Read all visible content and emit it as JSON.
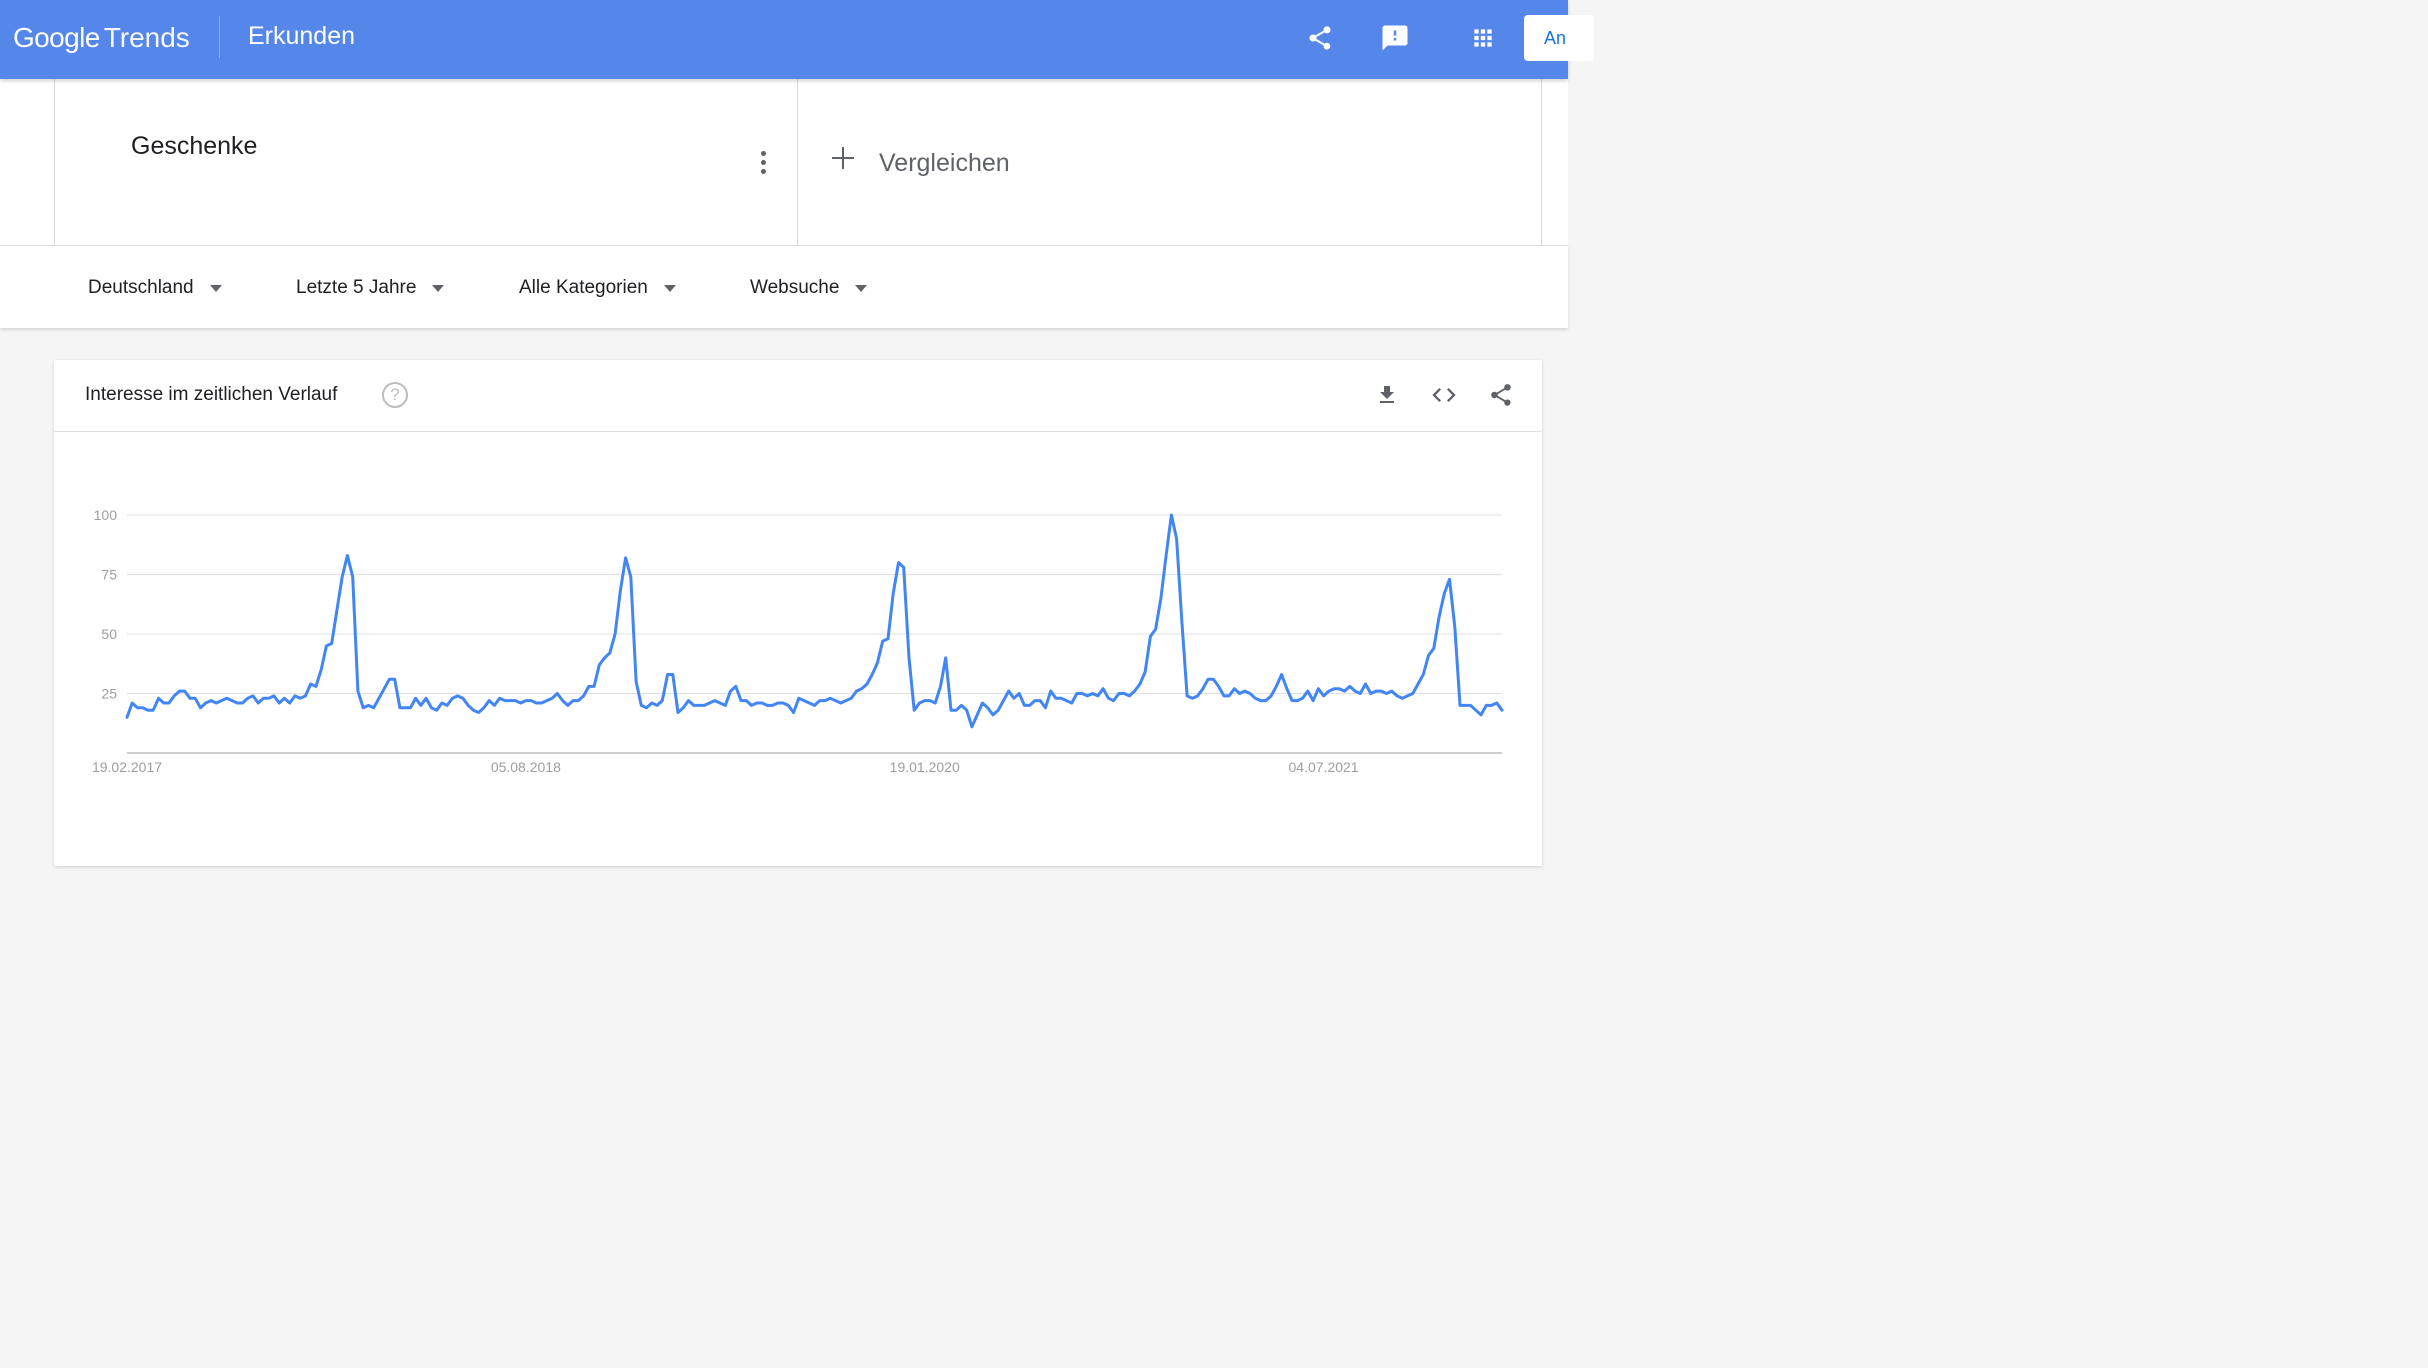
{
  "header": {
    "logo_google": "Google",
    "logo_trends": "Trends",
    "title": "Erkunden",
    "signin_label": "An",
    "icons": [
      "share-icon",
      "feedback-icon",
      "apps-icon"
    ]
  },
  "search": {
    "term": "Geschenke",
    "compare_label": "Vergleichen"
  },
  "filters": {
    "region": "Deutschland",
    "timeframe": "Letzte 5 Jahre",
    "category": "Alle Kategorien",
    "property": "Websuche"
  },
  "chart_card": {
    "title": "Interesse im zeitlichen Verlauf",
    "help_symbol": "?",
    "actions": [
      "download-icon",
      "embed-icon",
      "share-icon"
    ]
  },
  "colors": {
    "header": "#5586e9",
    "line": "#4285f4",
    "grid": "#e0e0e0",
    "tick_text": "#9e9e9e"
  },
  "chart_data": {
    "type": "line",
    "title": "Interesse im zeitlichen Verlauf",
    "xlabel": "",
    "ylabel": "",
    "ylim": [
      0,
      100
    ],
    "y_ticks": [
      25,
      50,
      75,
      100
    ],
    "x_tick_labels": [
      "19.02.2017",
      "05.08.2018",
      "19.01.2020",
      "04.07.2021"
    ],
    "x_tick_index": [
      0,
      76,
      152,
      228
    ],
    "grid": true,
    "legend": "none",
    "series": [
      {
        "values": [
          15,
          21,
          19,
          19,
          18,
          18,
          23,
          21,
          21,
          24,
          26,
          26,
          23,
          23,
          19,
          21,
          22,
          21,
          22,
          23,
          22,
          21,
          21,
          23,
          24,
          21,
          23,
          23,
          24,
          21,
          23,
          21,
          24,
          23,
          24,
          29,
          28,
          35,
          45,
          46,
          60,
          74,
          83,
          74,
          26,
          19,
          20,
          19,
          23,
          27,
          31,
          31,
          19,
          19,
          19,
          23,
          20,
          23,
          19,
          18,
          21,
          20,
          23,
          24,
          23,
          20,
          18,
          17,
          19,
          22,
          20,
          23,
          22,
          22,
          22,
          21,
          22,
          22,
          21,
          21,
          22,
          23,
          25,
          22,
          20,
          22,
          22,
          24,
          28,
          28,
          37,
          40,
          42,
          50,
          68,
          82,
          74,
          30,
          20,
          19,
          21,
          20,
          22,
          33,
          33,
          17,
          19,
          22,
          20,
          20,
          20,
          21,
          22,
          21,
          20,
          26,
          28,
          22,
          22,
          20,
          21,
          21,
          20,
          20,
          21,
          21,
          20,
          17,
          23,
          22,
          21,
          20,
          22,
          22,
          23,
          22,
          21,
          22,
          23,
          26,
          27,
          29,
          33,
          38,
          47,
          48,
          67,
          80,
          78,
          40,
          18,
          21,
          22,
          22,
          21,
          28,
          40,
          18,
          18,
          20,
          18,
          11,
          16,
          21,
          19,
          16,
          18,
          22,
          26,
          23,
          25,
          20,
          20,
          22,
          22,
          19,
          26,
          23,
          23,
          22,
          21,
          25,
          25,
          24,
          25,
          24,
          27,
          23,
          22,
          25,
          25,
          24,
          26,
          29,
          34,
          49,
          52,
          65,
          83,
          100,
          90,
          55,
          24,
          23,
          24,
          27,
          31,
          31,
          28,
          24,
          24,
          27,
          25,
          26,
          25,
          23,
          22,
          22,
          24,
          28,
          33,
          27,
          22,
          22,
          23,
          26,
          22,
          27,
          24,
          26,
          27,
          27,
          26,
          28,
          26,
          25,
          29,
          25,
          26,
          26,
          25,
          26,
          24,
          23,
          24,
          25,
          29,
          33,
          41,
          44,
          57,
          67,
          73,
          53,
          20,
          20,
          20,
          18,
          16,
          20,
          20,
          21,
          18
        ]
      }
    ]
  }
}
